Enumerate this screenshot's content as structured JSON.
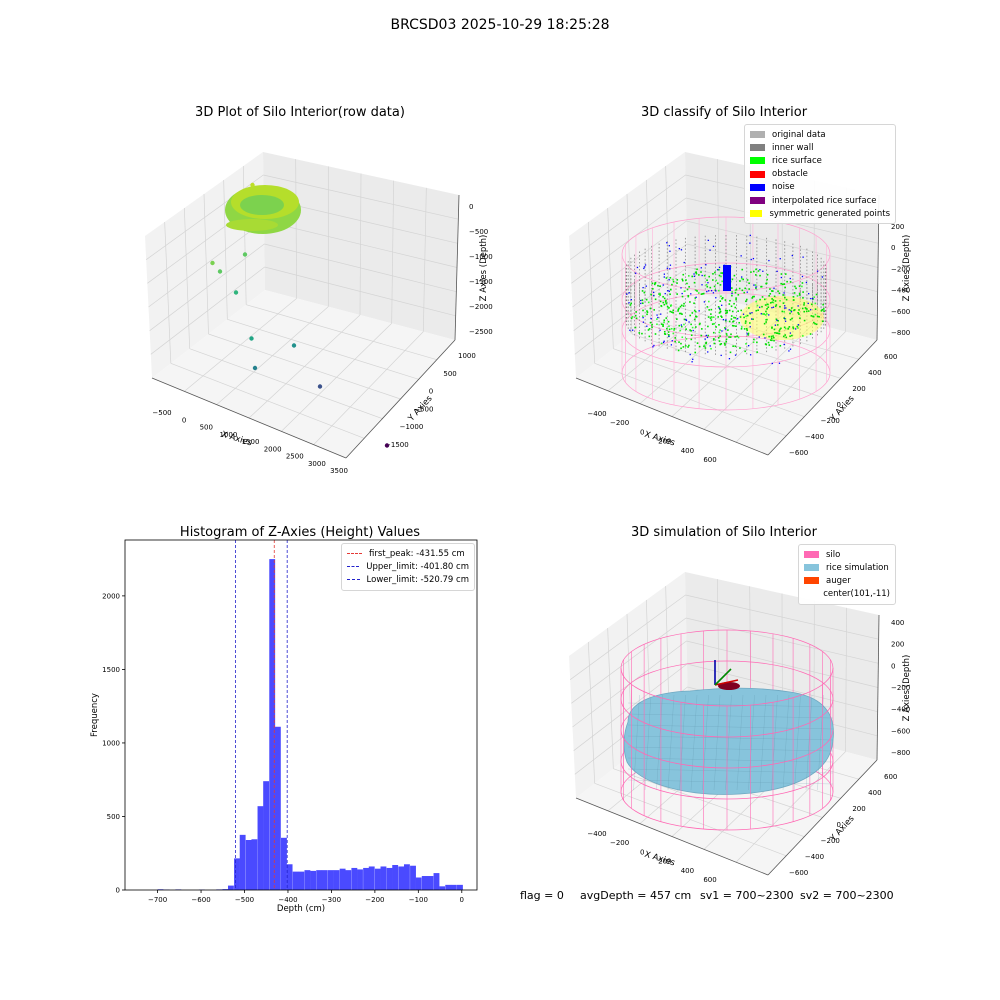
{
  "suptitle": "BRCSD03 2025-10-29 18:25:28",
  "footer": {
    "flag": "flag = 0",
    "avgdepth": "avgDepth = 457 cm",
    "sv1": "sv1 = 700~2300",
    "sv2": "sv2 = 700~2300"
  },
  "colors": {
    "hist_bar": "#4a4aff",
    "first_peak": "#e53935",
    "limit_line": "#2222cc",
    "silo": "#ff69b4",
    "rice_simulation": "#87c4dc",
    "auger": "#ff4500",
    "rice_surface": "#00ff00",
    "noise": "#0000ff",
    "inner_wall": "#808080"
  },
  "chart_data": [
    {
      "type": "scatter",
      "projection": "3d",
      "title": "3D Plot of Silo Interior(row data)",
      "xlabel": "X Axies",
      "ylabel": "Y Axies",
      "zlabel": "Z Axies (Depth)",
      "xticks": [
        -500,
        0,
        500,
        1000,
        1500,
        2000,
        2500,
        3000,
        3500
      ],
      "yticks": [
        -1500,
        -1000,
        -500,
        0,
        500,
        1000
      ],
      "zticks": [
        0,
        -500,
        -1000,
        -1500,
        -2000,
        -2500
      ],
      "colormap": "viridis",
      "series": [
        {
          "values": [
            {
              "x": 3300,
              "y": -1400,
              "z": -2500
            },
            {
              "x": 2200,
              "y": -1000,
              "z": -1900
            },
            {
              "x": 2400,
              "y": 200,
              "z": -1700
            },
            {
              "x": 1300,
              "y": 300,
              "z": -1100
            },
            {
              "x": 1600,
              "y": 500,
              "z": -700
            },
            {
              "x": 1100,
              "y": 500,
              "z": -900
            },
            {
              "x": 950,
              "y": 500,
              "z": -800
            },
            {
              "x": 1200,
              "y": -500,
              "z": -1800
            },
            {
              "x": 1250,
              "y": -300,
              "z": -1500
            },
            {
              "x": 2050,
              "y": 1000,
              "z": 0
            }
          ]
        }
      ]
    },
    {
      "type": "scatter",
      "projection": "3d",
      "title": "3D classify of Silo Interior",
      "xlabel": "X Axies",
      "ylabel": "Y Axies",
      "zlabel": "Z Axies (Depth)",
      "xticks": [
        -400,
        -200,
        0,
        200,
        400,
        600
      ],
      "yticks": [
        -600,
        -400,
        -200,
        0,
        200,
        400,
        600
      ],
      "zticks": [
        200,
        0,
        -200,
        -400,
        -600,
        -800
      ],
      "legend": "top-right",
      "legend_entries": [
        {
          "label": "original data",
          "color": "#b0b0b0"
        },
        {
          "label": "inner wall",
          "color": "#808080"
        },
        {
          "label": "rice surface",
          "color": "#00ff00"
        },
        {
          "label": "obstacle",
          "color": "#ff0000"
        },
        {
          "label": "noise",
          "color": "#0000ff"
        },
        {
          "label": "interpolated rice surface",
          "color": "#800080"
        },
        {
          "label": "symmetric generated points",
          "color": "#ffff00"
        }
      ]
    },
    {
      "type": "bar",
      "title": "Histogram of Z-Axies (Height) Values",
      "xlabel": "Depth (cm)",
      "ylabel": "Frequency",
      "xlim": [
        -775,
        35
      ],
      "ylim": [
        0,
        2380
      ],
      "xticks": [
        -700,
        -600,
        -500,
        -400,
        -300,
        -200,
        -100,
        0
      ],
      "yticks": [
        0,
        500,
        1000,
        1500,
        2000
      ],
      "bin_width": 13.5,
      "bins": [
        {
          "x": -700,
          "y": 5
        },
        {
          "x": -686,
          "y": 3
        },
        {
          "x": -659,
          "y": 4
        },
        {
          "x": -605,
          "y": 3
        },
        {
          "x": -565,
          "y": 4
        },
        {
          "x": -551,
          "y": 6
        },
        {
          "x": -538,
          "y": 30
        },
        {
          "x": -524,
          "y": 215
        },
        {
          "x": -511,
          "y": 375
        },
        {
          "x": -497,
          "y": 340
        },
        {
          "x": -484,
          "y": 345
        },
        {
          "x": -470,
          "y": 570
        },
        {
          "x": -457,
          "y": 740
        },
        {
          "x": -443,
          "y": 2250
        },
        {
          "x": -430,
          "y": 1110
        },
        {
          "x": -416,
          "y": 355
        },
        {
          "x": -403,
          "y": 175
        },
        {
          "x": -389,
          "y": 125
        },
        {
          "x": -376,
          "y": 125
        },
        {
          "x": -362,
          "y": 135
        },
        {
          "x": -349,
          "y": 130
        },
        {
          "x": -335,
          "y": 135
        },
        {
          "x": -322,
          "y": 135
        },
        {
          "x": -308,
          "y": 135
        },
        {
          "x": -295,
          "y": 135
        },
        {
          "x": -281,
          "y": 145
        },
        {
          "x": -268,
          "y": 135
        },
        {
          "x": -254,
          "y": 150
        },
        {
          "x": -241,
          "y": 140
        },
        {
          "x": -227,
          "y": 150
        },
        {
          "x": -214,
          "y": 160
        },
        {
          "x": -200,
          "y": 145
        },
        {
          "x": -187,
          "y": 160
        },
        {
          "x": -173,
          "y": 150
        },
        {
          "x": -160,
          "y": 170
        },
        {
          "x": -146,
          "y": 160
        },
        {
          "x": -133,
          "y": 175
        },
        {
          "x": -119,
          "y": 165
        },
        {
          "x": -106,
          "y": 85
        },
        {
          "x": -92,
          "y": 95
        },
        {
          "x": -79,
          "y": 95
        },
        {
          "x": -65,
          "y": 115
        },
        {
          "x": -52,
          "y": 25
        },
        {
          "x": -38,
          "y": 35
        },
        {
          "x": -25,
          "y": 35
        },
        {
          "x": -11,
          "y": 35
        }
      ],
      "lines": [
        {
          "label": "first_peak: -431.55 cm",
          "x": -431.55,
          "color": "#e53935"
        },
        {
          "label": "Upper_limit: -401.80 cm",
          "x": -401.8,
          "color": "#2222cc"
        },
        {
          "label": "Lower_limit: -520.79 cm",
          "x": -520.79,
          "color": "#2222cc"
        }
      ],
      "legend": "top-right"
    },
    {
      "type": "scatter",
      "projection": "3d",
      "title": "3D simulation of Silo Interior",
      "xlabel": "X Axies",
      "ylabel": "Y Axies",
      "zlabel": "Z Axies (Depth)",
      "xticks": [
        -400,
        -200,
        0,
        200,
        400,
        600
      ],
      "yticks": [
        -600,
        -400,
        -200,
        0,
        200,
        400,
        600
      ],
      "zticks": [
        400,
        200,
        0,
        -200,
        -400,
        -600,
        -800
      ],
      "legend": "top-right",
      "legend_entries": [
        {
          "label": "silo",
          "color": "#ff69b4"
        },
        {
          "label": "rice simulation",
          "color": "#87c4dc"
        },
        {
          "label": "auger",
          "color": "#ff4500"
        },
        {
          "label": "center(101,-11)",
          "color": ""
        }
      ]
    }
  ]
}
